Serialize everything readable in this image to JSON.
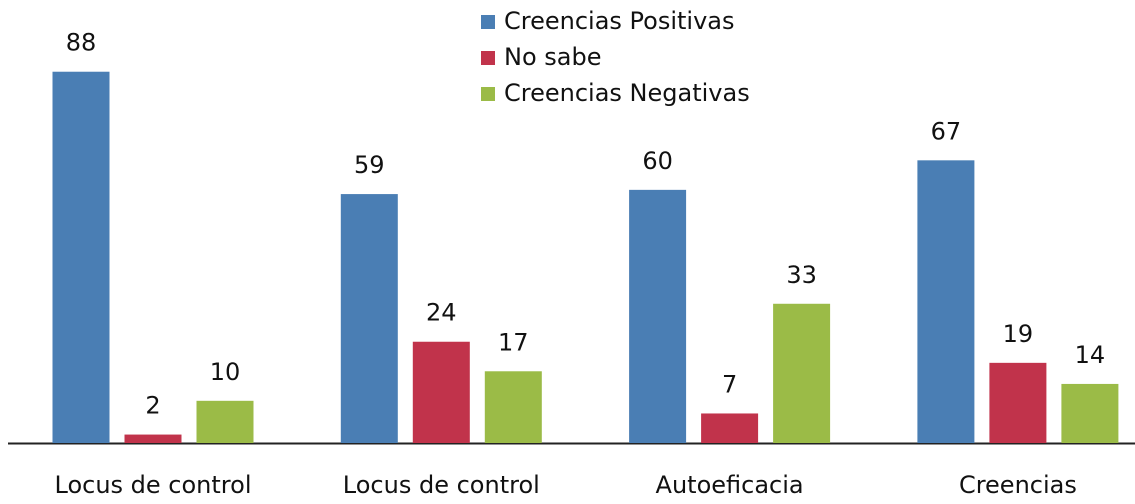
{
  "chart_data": {
    "type": "bar",
    "categories": [
      "Locus de control",
      "Locus de control",
      "Autoeficacia",
      "Creencias"
    ],
    "series": [
      {
        "name": "Creencias Positivas",
        "color": "#4a7eb4",
        "values": [
          88,
          59,
          60,
          67
        ]
      },
      {
        "name": "No sabe",
        "color": "#c1334b",
        "values": [
          2,
          24,
          7,
          19
        ]
      },
      {
        "name": "Creencias Negativas",
        "color": "#9bbb47",
        "values": [
          10,
          17,
          33,
          14
        ]
      }
    ],
    "ylim": [
      0,
      105
    ]
  }
}
